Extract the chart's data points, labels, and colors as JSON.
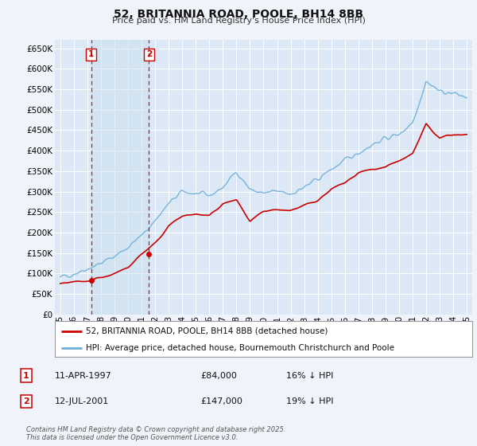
{
  "title": "52, BRITANNIA ROAD, POOLE, BH14 8BB",
  "subtitle": "Price paid vs. HM Land Registry's House Price Index (HPI)",
  "legend_line1": "52, BRITANNIA ROAD, POOLE, BH14 8BB (detached house)",
  "legend_line2": "HPI: Average price, detached house, Bournemouth Christchurch and Poole",
  "table_rows": [
    {
      "num": "1",
      "date": "11-APR-1997",
      "price": "£84,000",
      "note": "16% ↓ HPI"
    },
    {
      "num": "2",
      "date": "12-JUL-2001",
      "price": "£147,000",
      "note": "19% ↓ HPI"
    }
  ],
  "footer": "Contains HM Land Registry data © Crown copyright and database right 2025.\nThis data is licensed under the Open Government Licence v3.0.",
  "hpi_color": "#6baed6",
  "price_color": "#cc0000",
  "vline_color": "#cc0000",
  "background_color": "#f0f4fa",
  "plot_bg_color": "#dce8f5",
  "shade_color": "#c8ddf0",
  "grid_color": "#ffffff",
  "ylim": [
    0,
    670000
  ],
  "yticks": [
    0,
    50000,
    100000,
    150000,
    200000,
    250000,
    300000,
    350000,
    400000,
    450000,
    500000,
    550000,
    600000,
    650000
  ],
  "sale1_year": 1997.28,
  "sale1_price": 84000,
  "sale2_year": 2001.54,
  "sale2_price": 147000,
  "xmin": 1995,
  "xmax": 2025
}
